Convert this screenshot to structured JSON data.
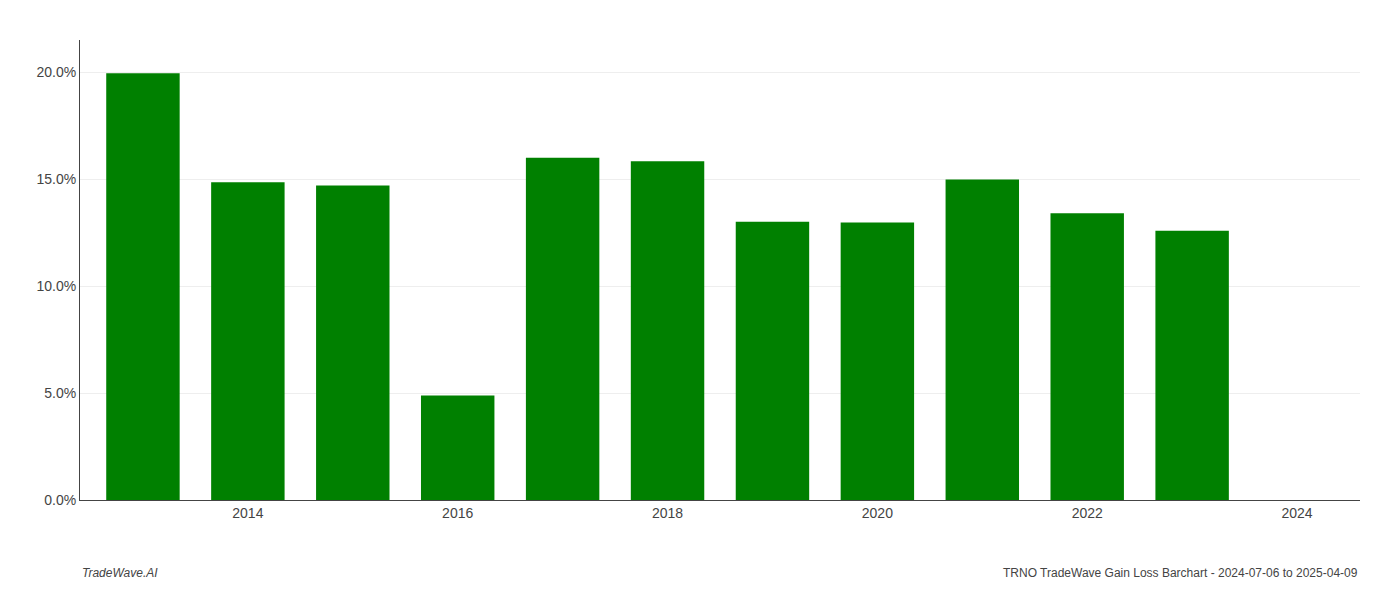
{
  "chart_data": {
    "type": "bar",
    "x": [
      2013,
      2014,
      2015,
      2016,
      2017,
      2018,
      2019,
      2020,
      2021,
      2022,
      2023
    ],
    "values": [
      0.1995,
      0.1485,
      0.147,
      0.0488,
      0.16,
      0.1583,
      0.13,
      0.1297,
      0.1498,
      0.134,
      0.1258
    ],
    "color": "#008000",
    "xlim": [
      2012.4,
      2024.6
    ],
    "xticks": [
      2014,
      2016,
      2018,
      2020,
      2022,
      2024
    ],
    "ylim": [
      0,
      0.215
    ],
    "yticks": [
      {
        "value": 0.0,
        "label": "0.0%"
      },
      {
        "value": 0.05,
        "label": "5.0%"
      },
      {
        "value": 0.1,
        "label": "10.0%"
      },
      {
        "value": 0.15,
        "label": "15.0%"
      },
      {
        "value": 0.2,
        "label": "20.0%"
      }
    ],
    "grid": true,
    "annotations": [
      {
        "text": "TradeWave.AI"
      },
      {
        "text": "TRNO TradeWave Gain Loss Barchart - 2024-07-06 to 2025-04-09"
      }
    ]
  }
}
